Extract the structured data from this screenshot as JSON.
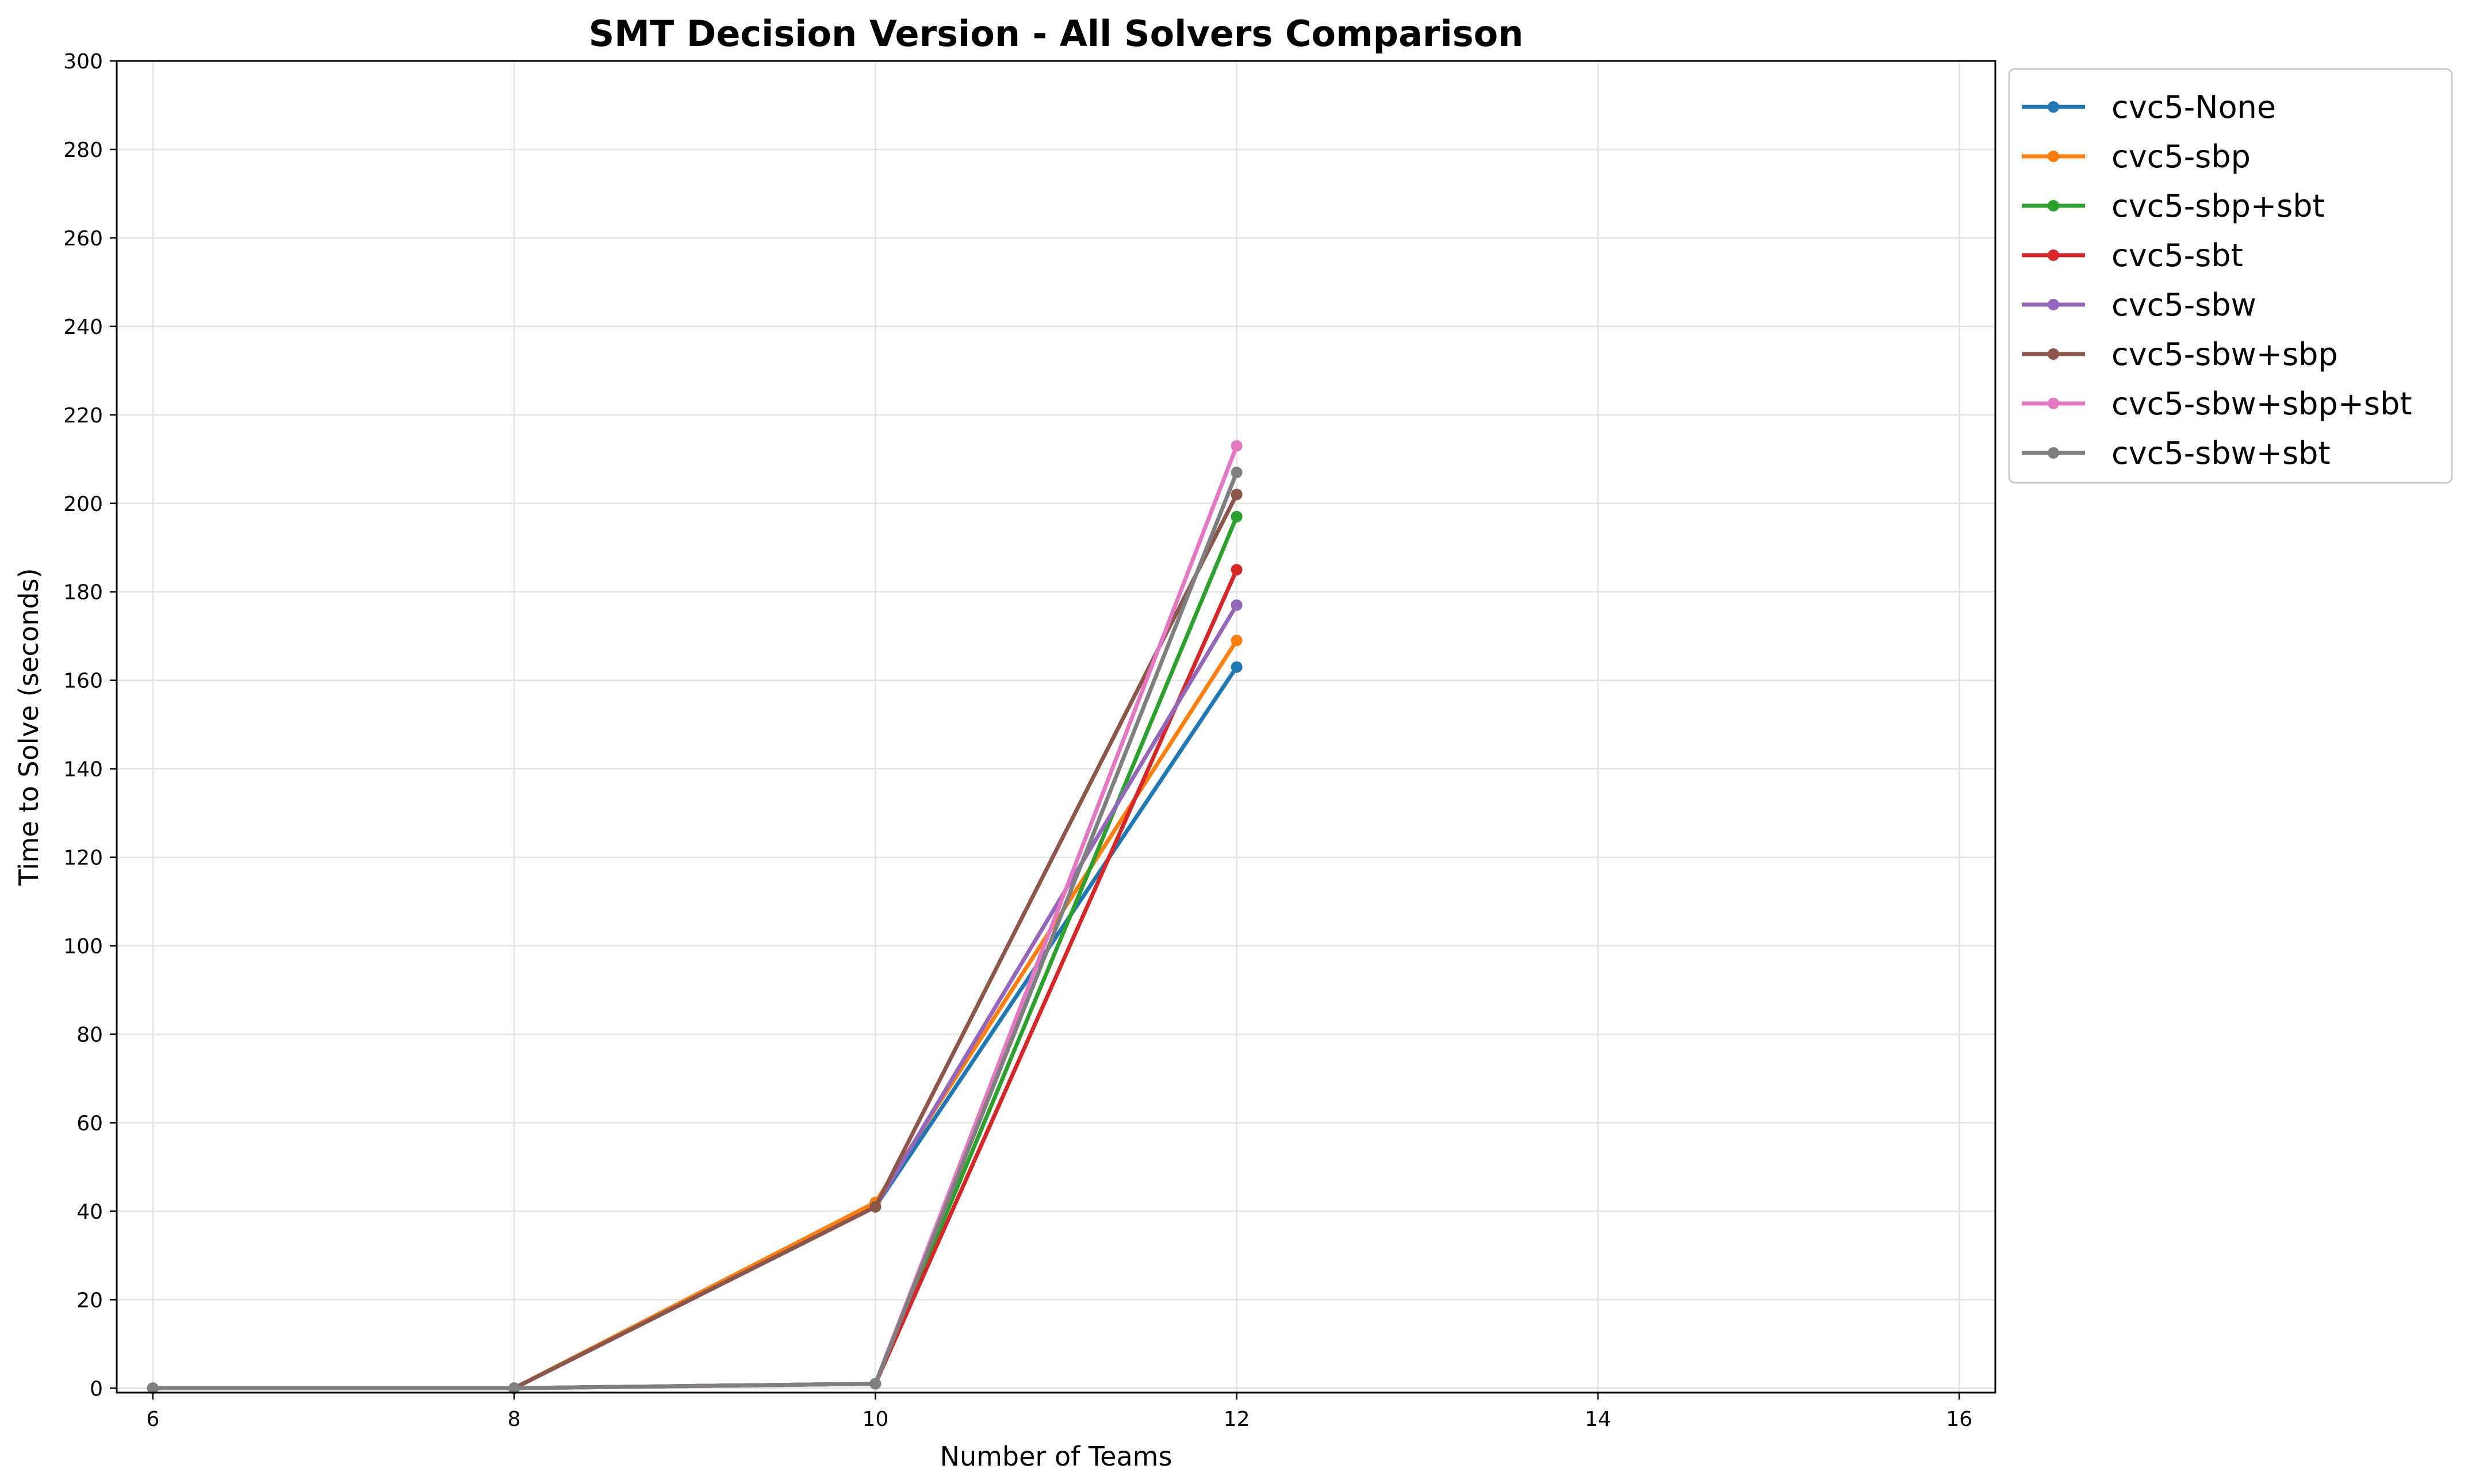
{
  "chart_data": {
    "type": "line",
    "title": "SMT Decision Version - All Solvers Comparison",
    "xlabel": "Number of Teams",
    "ylabel": "Time to Solve (seconds)",
    "xlim": [
      5.8,
      16.2
    ],
    "ylim": [
      -1,
      300
    ],
    "xticks": [
      6,
      8,
      10,
      12,
      14,
      16
    ],
    "yticks": [
      0,
      20,
      40,
      60,
      80,
      100,
      120,
      140,
      160,
      180,
      200,
      220,
      240,
      260,
      280,
      300
    ],
    "grid": true,
    "legend_position": "outside-upper-right",
    "x": [
      6,
      8,
      10,
      12
    ],
    "series": [
      {
        "name": "cvc5-None",
        "color": "#1f77b4",
        "values": [
          0,
          0,
          41,
          163
        ]
      },
      {
        "name": "cvc5-sbp",
        "color": "#ff7f0e",
        "values": [
          0,
          0,
          42,
          169
        ]
      },
      {
        "name": "cvc5-sbp+sbt",
        "color": "#2ca02c",
        "values": [
          0,
          0,
          1,
          197
        ]
      },
      {
        "name": "cvc5-sbt",
        "color": "#d62728",
        "values": [
          0,
          0,
          1,
          185
        ]
      },
      {
        "name": "cvc5-sbw",
        "color": "#9467bd",
        "values": [
          0,
          0,
          41,
          177
        ]
      },
      {
        "name": "cvc5-sbw+sbp",
        "color": "#8c564b",
        "values": [
          0,
          0,
          41,
          202
        ]
      },
      {
        "name": "cvc5-sbw+sbp+sbt",
        "color": "#e377c2",
        "values": [
          0,
          0,
          1,
          213
        ]
      },
      {
        "name": "cvc5-sbw+sbt",
        "color": "#7f7f7f",
        "values": [
          0,
          0,
          1,
          207
        ]
      }
    ]
  }
}
